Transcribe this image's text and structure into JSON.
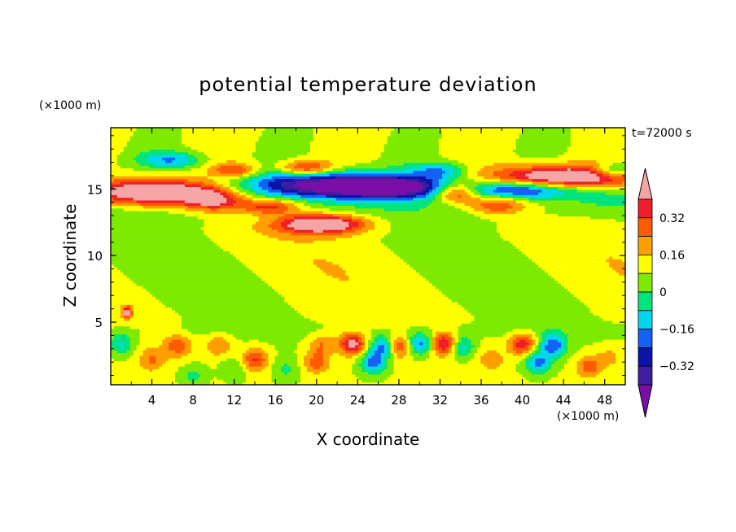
{
  "chart_data": {
    "type": "heatmap",
    "title": "potential temperature deviation",
    "xlabel": "X coordinate",
    "ylabel": "Z coordinate",
    "x_unit": "(×1000 m)",
    "y_unit": "(×1000 m)",
    "time_label": "t=72000 s",
    "xlim": [
      0,
      50
    ],
    "ylim": [
      0.3,
      19.6
    ],
    "x_ticks": [
      4,
      8,
      12,
      16,
      20,
      24,
      28,
      32,
      36,
      40,
      44,
      48
    ],
    "y_ticks": [
      5,
      10,
      15
    ],
    "colorbar": {
      "levels": [
        -0.48,
        -0.4,
        -0.32,
        -0.24,
        -0.16,
        -0.08,
        0,
        0.08,
        0.16,
        0.24,
        0.32,
        0.4
      ],
      "colors": [
        "#7a0fa8",
        "#3c1e9e",
        "#0c14a8",
        "#1461f5",
        "#00d7ef",
        "#00e47e",
        "#7dea00",
        "#ffff00",
        "#ff9e00",
        "#ff5a00",
        "#ef1e28",
        "#f4a6a6"
      ],
      "tick_labels": [
        "0.32",
        "0.16",
        "0",
        "−0.16",
        "−0.32"
      ],
      "tick_values": [
        0.32,
        0.16,
        0,
        -0.16,
        -0.32
      ]
    },
    "features": [
      {
        "type": "warm_band",
        "x": [
          0,
          11
        ],
        "z": [
          14.2,
          16.0
        ],
        "value": 0.45
      },
      {
        "type": "cold_band",
        "x": [
          11,
          33
        ],
        "z": [
          14.4,
          16.4
        ],
        "value": -0.45
      },
      {
        "type": "warm_band",
        "x": [
          39,
          50
        ],
        "z": [
          15.0,
          16.6
        ],
        "value": 0.45
      },
      {
        "type": "cold_band",
        "x": [
          36,
          44
        ],
        "z": [
          14.6,
          15.6
        ],
        "value": -0.35
      },
      {
        "type": "warm_patch",
        "x": [
          17,
          23
        ],
        "z": [
          11.8,
          13.0
        ],
        "value": 0.45
      },
      {
        "type": "cold_patch",
        "x": [
          4,
          9
        ],
        "z": [
          16.8,
          17.6
        ],
        "value": -0.25
      },
      {
        "type": "warm_patch",
        "x": [
          17,
          21
        ],
        "z": [
          16.2,
          16.9
        ],
        "value": 0.3
      },
      {
        "type": "warm_patch",
        "x": [
          32,
          35
        ],
        "z": [
          14.6,
          15.3
        ],
        "value": 0.4
      },
      {
        "type": "near_surface_cells",
        "x": [
          0,
          50
        ],
        "z": [
          0.5,
          4.0
        ],
        "value": "±0.3"
      }
    ]
  }
}
